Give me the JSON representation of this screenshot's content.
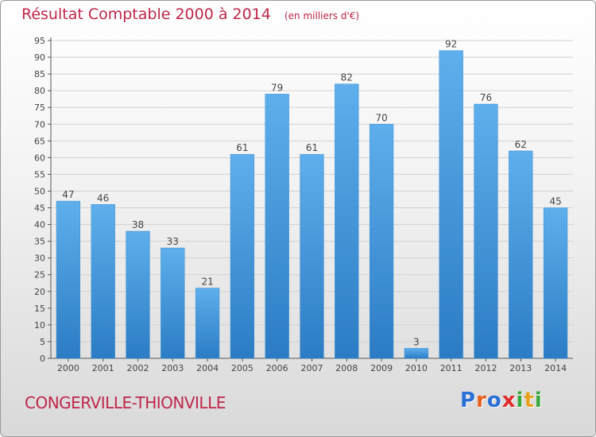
{
  "title": "Résultat Comptable 2000 à 2014",
  "subtitle": "(en milliers d'€)",
  "footer_name": "CONGERVILLE-THIONVILLE",
  "logo": {
    "text": "Proxiti",
    "letters": [
      "P",
      "r",
      "o",
      "x",
      "i",
      "t",
      "i"
    ],
    "colors": [
      "#2a6fd6",
      "#e8601c",
      "#2a6fd6",
      "#e02b2b",
      "#3aa83a",
      "#e8a11c",
      "#3aa83a"
    ]
  },
  "chart_data": {
    "type": "bar",
    "categories": [
      "2000",
      "2001",
      "2002",
      "2003",
      "2004",
      "2005",
      "2006",
      "2007",
      "2008",
      "2009",
      "2010",
      "2011",
      "2012",
      "2013",
      "2014"
    ],
    "values": [
      47,
      46,
      38,
      33,
      21,
      61,
      79,
      61,
      82,
      70,
      3,
      92,
      76,
      62,
      45
    ],
    "title": "Résultat Comptable 2000 à 2014",
    "xlabel": "",
    "ylabel": "",
    "ylim": [
      0,
      95
    ],
    "ytick_step": 5,
    "grid": true,
    "bar_color": "#4a9de0",
    "show_data_labels": true
  }
}
